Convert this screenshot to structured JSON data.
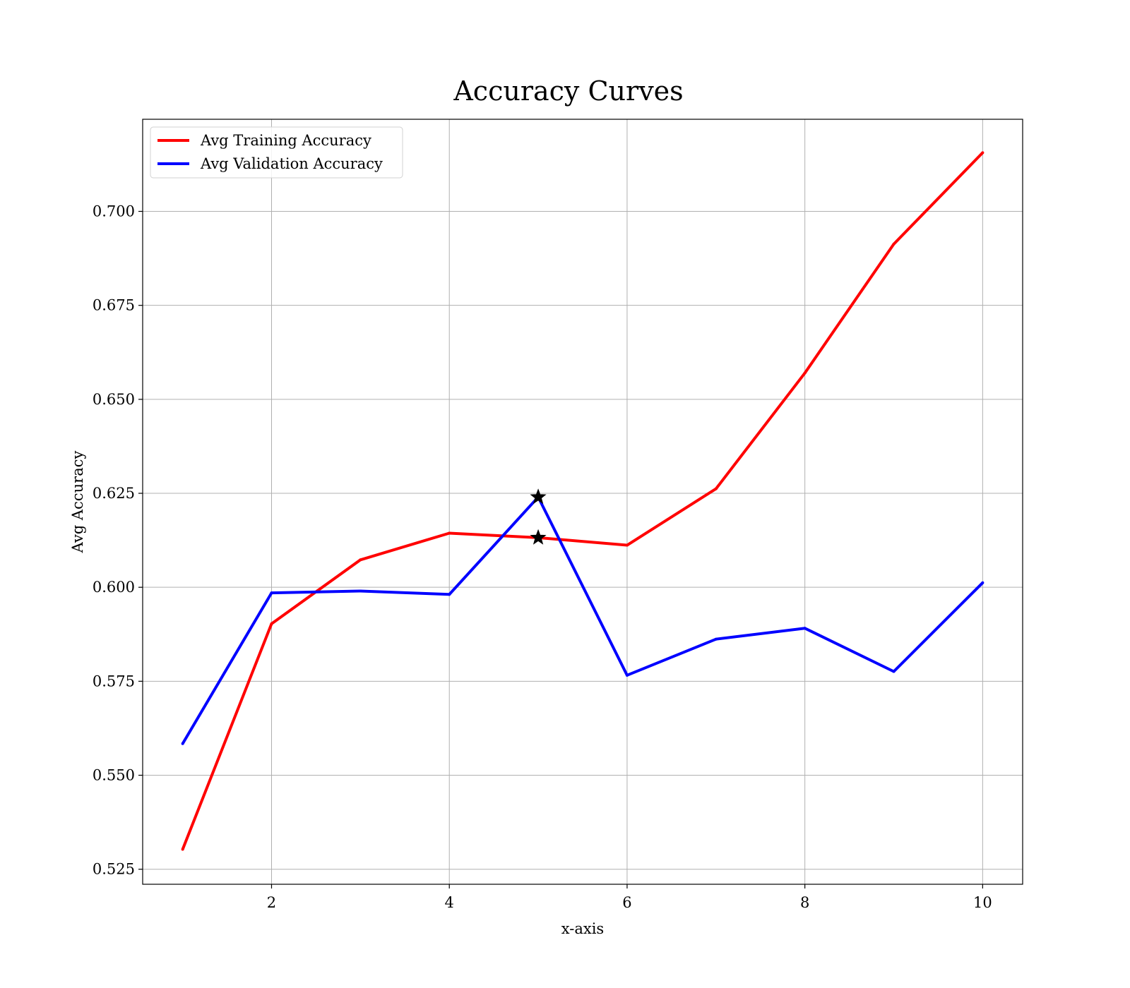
{
  "chart_data": {
    "type": "line",
    "title": "Accuracy Curves",
    "xlabel": "x-axis",
    "ylabel": "Avg Accuracy",
    "x": [
      1,
      2,
      3,
      4,
      5,
      6,
      7,
      8,
      9,
      10
    ],
    "xlim": [
      0.55,
      10.45
    ],
    "ylim": [
      0.521,
      0.7245
    ],
    "xticks": [
      2,
      4,
      6,
      8,
      10
    ],
    "xtick_labels": [
      "2",
      "4",
      "6",
      "8",
      "10"
    ],
    "yticks": [
      0.525,
      0.55,
      0.575,
      0.6,
      0.625,
      0.65,
      0.675,
      0.7
    ],
    "ytick_labels": [
      "0.525",
      "0.550",
      "0.575",
      "0.600",
      "0.625",
      "0.650",
      "0.675",
      "0.700"
    ],
    "grid": true,
    "legend_position": "top-left",
    "series": [
      {
        "name": "Avg Training Accuracy",
        "color": "#ff0000",
        "values": [
          0.5303,
          0.5903,
          0.6073,
          0.6144,
          0.6132,
          0.6112,
          0.6262,
          0.657,
          0.6913,
          0.7156
        ]
      },
      {
        "name": "Avg Validation Accuracy",
        "color": "#0000ff",
        "values": [
          0.5584,
          0.5985,
          0.599,
          0.5981,
          0.624,
          0.5766,
          0.5862,
          0.5891,
          0.5776,
          0.6012
        ]
      }
    ],
    "markers": [
      {
        "type": "star",
        "x": 5,
        "y": 0.624,
        "color": "#000000"
      },
      {
        "type": "star",
        "x": 5,
        "y": 0.6132,
        "color": "#000000"
      }
    ]
  }
}
